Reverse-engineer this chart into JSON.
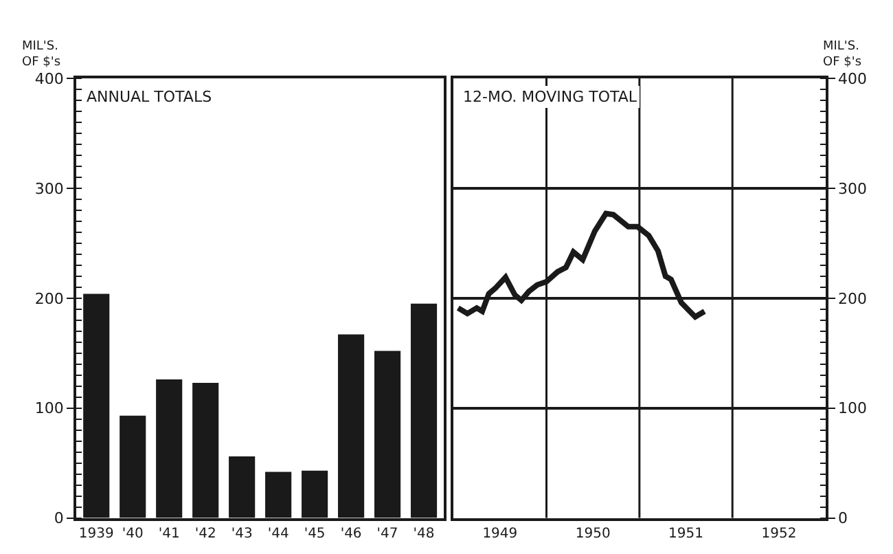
{
  "chart_data": [
    {
      "type": "bar",
      "title": "ANNUAL TOTALS",
      "ylabel": "MIL'S.\nOF $'s",
      "categories": [
        "1939",
        "'40",
        "'41",
        "'42",
        "'43",
        "'44",
        "'45",
        "'46",
        "'47",
        "'48"
      ],
      "values": [
        204,
        93,
        126,
        123,
        56,
        42,
        43,
        167,
        152,
        195
      ],
      "color": "#1a1a1a",
      "ylim": [
        0,
        400
      ],
      "yticks": [
        0,
        100,
        200,
        300,
        400
      ],
      "grid": false
    },
    {
      "type": "line",
      "title": "12-MO. MOVING TOTAL",
      "y2label": "MIL'S.\nOF $'s",
      "x": [
        1949.05,
        1949.15,
        1949.25,
        1949.31,
        1949.38,
        1949.45,
        1949.56,
        1949.66,
        1949.73,
        1949.81,
        1949.9,
        1950.0,
        1950.12,
        1950.21,
        1950.29,
        1950.39,
        1950.52,
        1950.64,
        1950.72,
        1950.88,
        1950.98,
        1951.1,
        1951.2,
        1951.28,
        1951.34,
        1951.45,
        1951.6,
        1951.7
      ],
      "series": [
        {
          "color": "#1a1a1a",
          "axis": "y2",
          "values": [
            191,
            186,
            191,
            188,
            204,
            209,
            219,
            203,
            198,
            206,
            212,
            215,
            224,
            228,
            242,
            235,
            261,
            277,
            276,
            265,
            265,
            257,
            243,
            220,
            217,
            196,
            183,
            188
          ]
        }
      ],
      "xlim": [
        1949,
        1953
      ],
      "xticks": [
        {
          "value": 1949.5,
          "label": "1949"
        },
        {
          "value": 1950.5,
          "label": "1950"
        },
        {
          "value": 1951.5,
          "label": "1951"
        },
        {
          "value": 1952.5,
          "label": "1952"
        }
      ],
      "y2lim": [
        0,
        400
      ],
      "y2ticks": [
        0,
        100,
        200,
        300,
        400
      ],
      "grid": "y",
      "marker": "none",
      "line_style": "solid",
      "ref_lines": [
        {
          "axis": "x",
          "value": 1950,
          "color": "#1a1a1a"
        },
        {
          "axis": "x",
          "value": 1951,
          "color": "#1a1a1a"
        },
        {
          "axis": "x",
          "value": 1952,
          "color": "#1a1a1a"
        }
      ]
    }
  ]
}
